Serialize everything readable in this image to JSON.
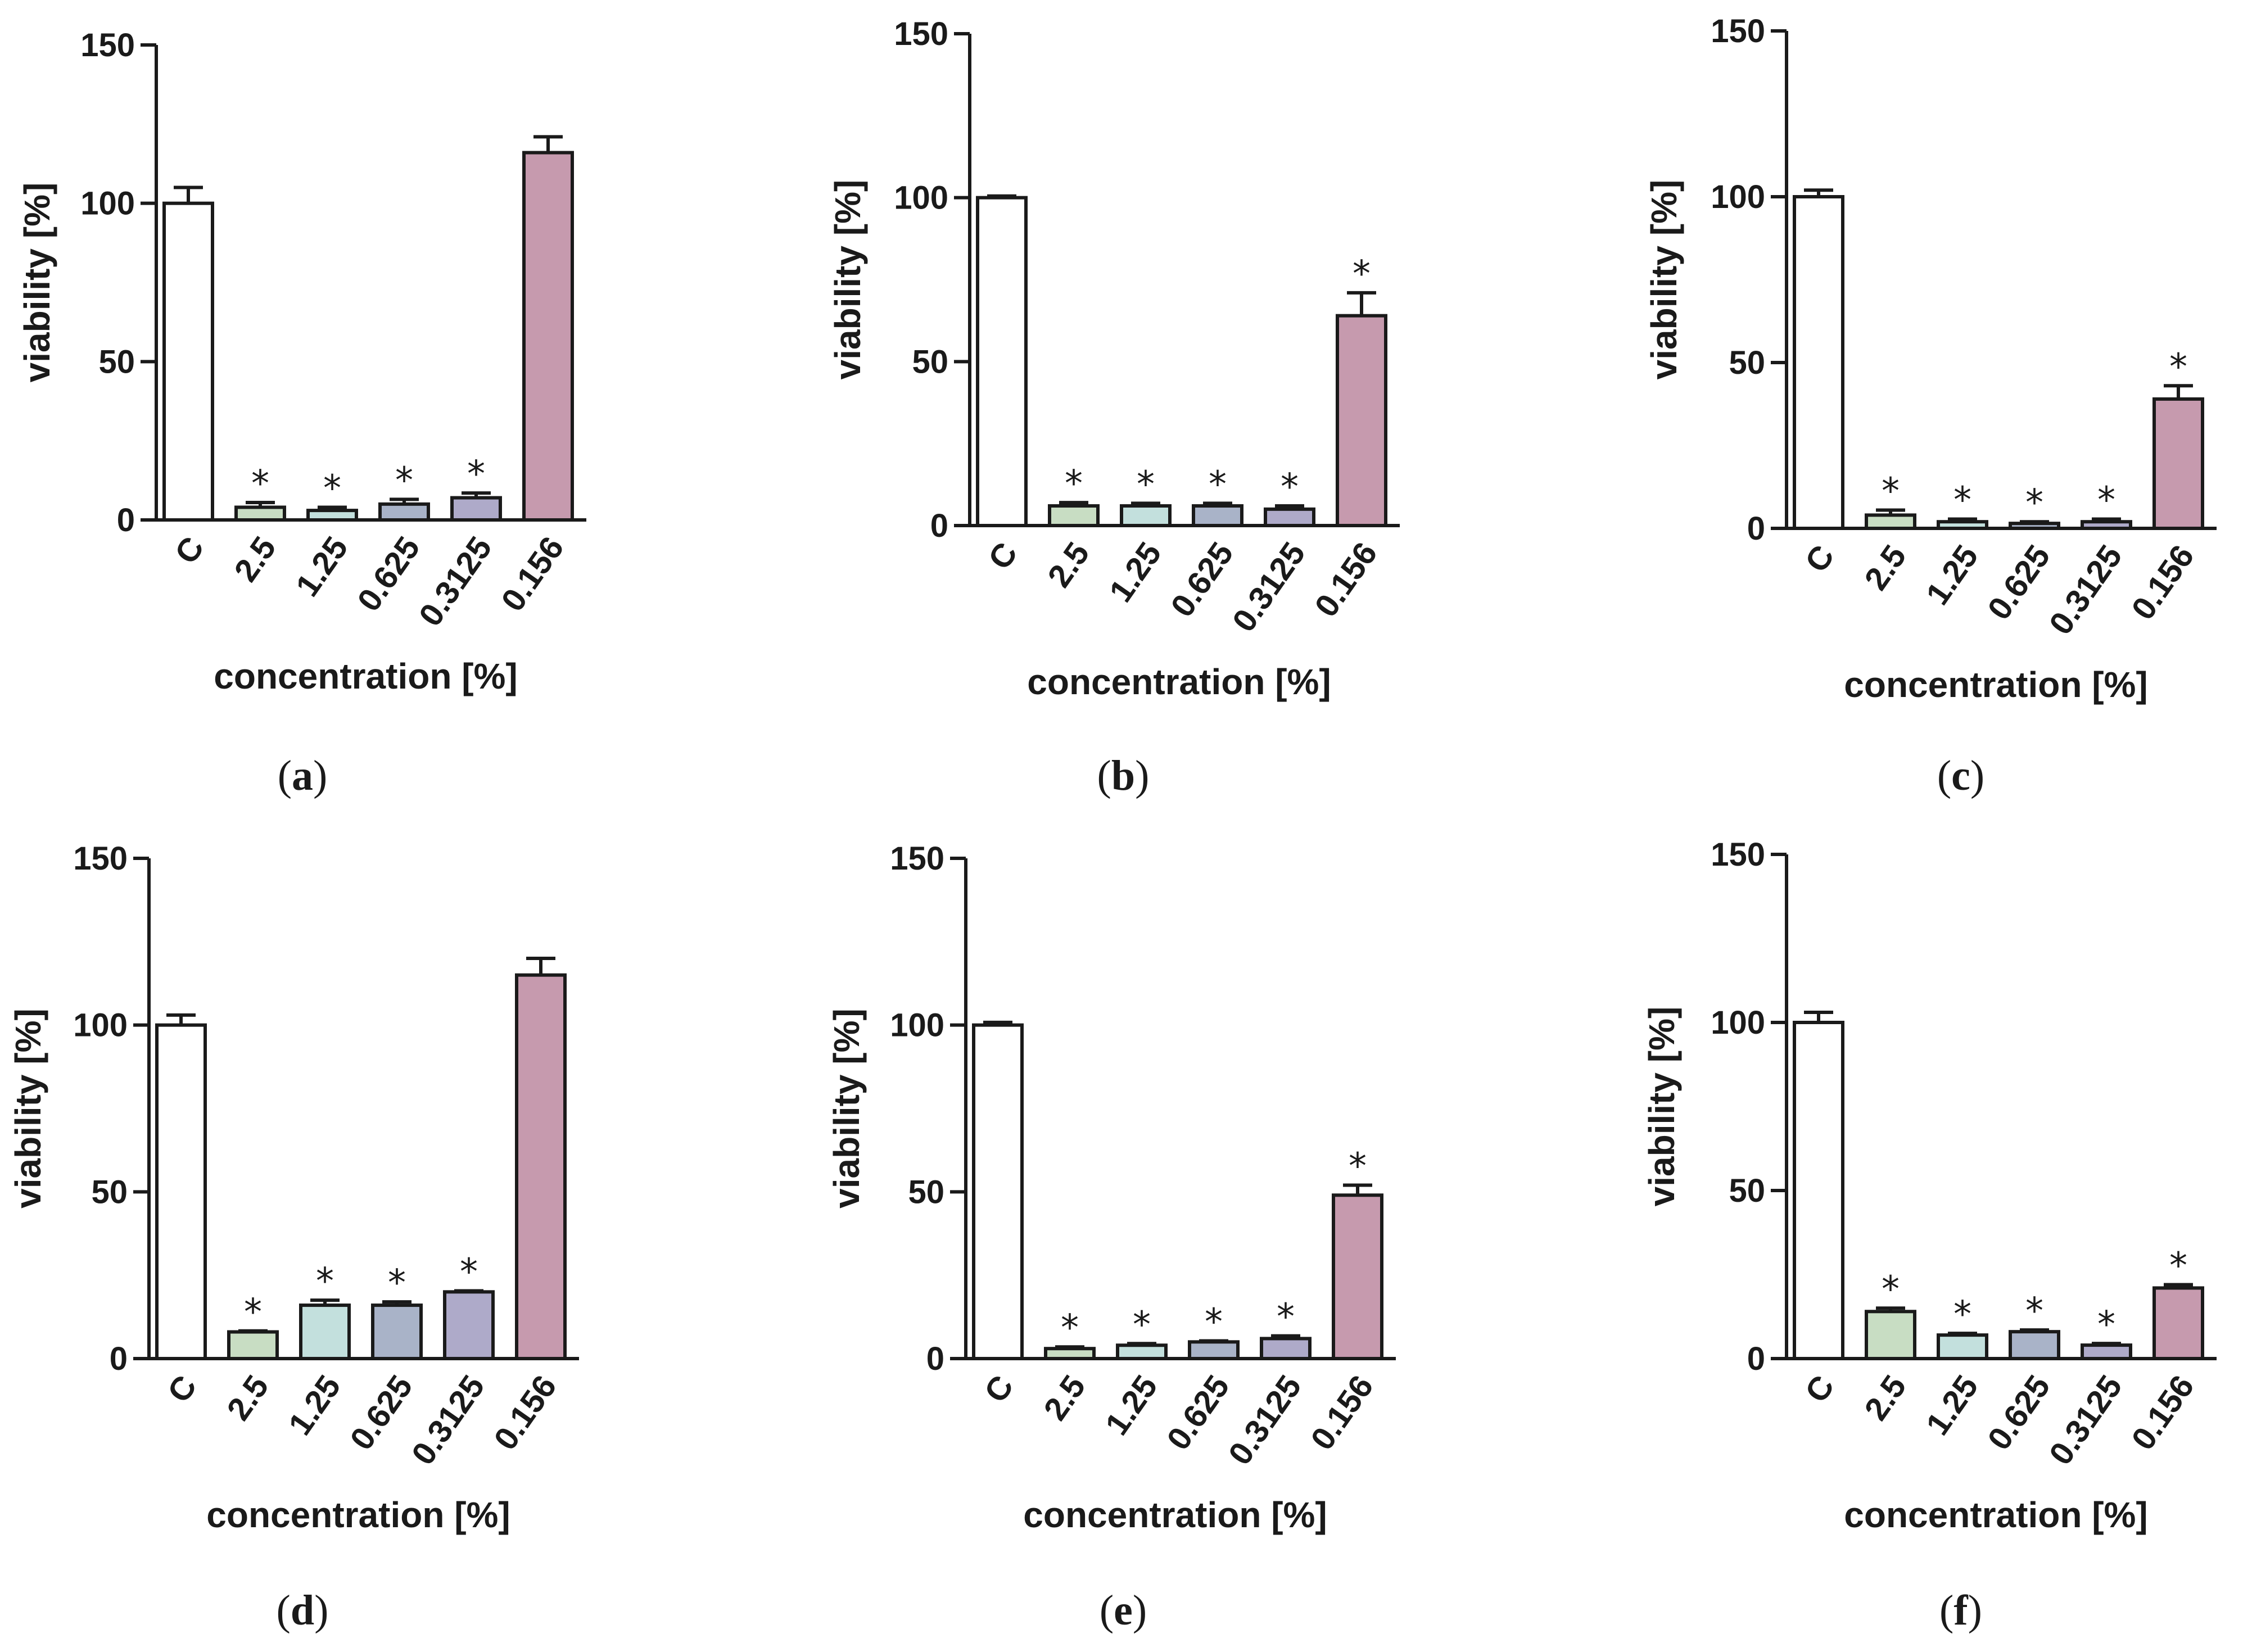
{
  "colors": {
    "C": "#ffffff",
    "2.5": "#c8ddc3",
    "1.25": "#c3e0dd",
    "0.625": "#a9b3c8",
    "0.3125": "#aeaac9",
    "0.156": "#c69aae",
    "stroke": "#1a1a1a"
  },
  "chart_data": [
    {
      "panel": "(a)",
      "type": "bar",
      "categories": [
        "C",
        "2.5",
        "1.25",
        "0.625",
        "0.3125",
        "0.156"
      ],
      "values": [
        100,
        4,
        3,
        5,
        7,
        116
      ],
      "errors": [
        5,
        1.5,
        1,
        1.5,
        1.5,
        5
      ],
      "significant": [
        false,
        true,
        true,
        true,
        true,
        false
      ],
      "significance_marker": "*",
      "xlabel": "concentration [%]",
      "ylabel": "viability [%]",
      "ylim": [
        0,
        150
      ],
      "yticks": [
        0,
        50,
        100,
        150
      ]
    },
    {
      "panel": "(b)",
      "type": "bar",
      "categories": [
        "C",
        "2.5",
        "1.25",
        "0.625",
        "0.3125",
        "0.156"
      ],
      "values": [
        100,
        6,
        6,
        6,
        5,
        64
      ],
      "errors": [
        0.5,
        1,
        0.8,
        0.8,
        1,
        7
      ],
      "significant": [
        false,
        true,
        true,
        true,
        true,
        true
      ],
      "significance_marker": "*",
      "xlabel": "concentration [%]",
      "ylabel": "viability [%]",
      "ylim": [
        0,
        150
      ],
      "yticks": [
        0,
        50,
        100,
        150
      ]
    },
    {
      "panel": "(c)",
      "type": "bar",
      "categories": [
        "C",
        "2.5",
        "1.25",
        "0.625",
        "0.3125",
        "0.156"
      ],
      "values": [
        100,
        4,
        2,
        1.5,
        2,
        39
      ],
      "errors": [
        2,
        1.5,
        0.8,
        0.5,
        0.8,
        4
      ],
      "significant": [
        false,
        true,
        true,
        true,
        true,
        true
      ],
      "significance_marker": "*",
      "xlabel": "concentration [%]",
      "ylabel": "viability [%]",
      "ylim": [
        0,
        150
      ],
      "yticks": [
        0,
        50,
        100,
        150
      ]
    },
    {
      "panel": "(d)",
      "type": "bar",
      "categories": [
        "C",
        "2.5",
        "1.25",
        "0.625",
        "0.3125",
        "0.156"
      ],
      "values": [
        100,
        8,
        16,
        16,
        20,
        115
      ],
      "errors": [
        3,
        0.3,
        1.5,
        1,
        0.3,
        5
      ],
      "significant": [
        false,
        true,
        true,
        true,
        true,
        false
      ],
      "significance_marker": "*",
      "xlabel": "concentration [%]",
      "ylabel": "viability [%]",
      "ylim": [
        0,
        150
      ],
      "yticks": [
        0,
        50,
        100,
        150
      ]
    },
    {
      "panel": "(e)",
      "type": "bar",
      "categories": [
        "C",
        "2.5",
        "1.25",
        "0.625",
        "0.3125",
        "0.156"
      ],
      "values": [
        100,
        3,
        4,
        5,
        6,
        49
      ],
      "errors": [
        0.8,
        0.5,
        0.5,
        0.3,
        0.8,
        3
      ],
      "significant": [
        false,
        true,
        true,
        true,
        true,
        true
      ],
      "significance_marker": "*",
      "xlabel": "concentration [%]",
      "ylabel": "viability [%]",
      "ylim": [
        0,
        150
      ],
      "yticks": [
        0,
        50,
        100,
        150
      ]
    },
    {
      "panel": "(f)",
      "type": "bar",
      "categories": [
        "C",
        "2.5",
        "1.25",
        "0.625",
        "0.3125",
        "0.156"
      ],
      "values": [
        100,
        14,
        7,
        8,
        4,
        21
      ],
      "errors": [
        3,
        1,
        0.5,
        0.5,
        0.5,
        1
      ],
      "significant": [
        false,
        true,
        true,
        true,
        true,
        true
      ],
      "significance_marker": "*",
      "xlabel": "concentration [%]",
      "ylabel": "viability [%]",
      "ylim": [
        0,
        150
      ],
      "yticks": [
        0,
        50,
        100,
        150
      ]
    }
  ]
}
